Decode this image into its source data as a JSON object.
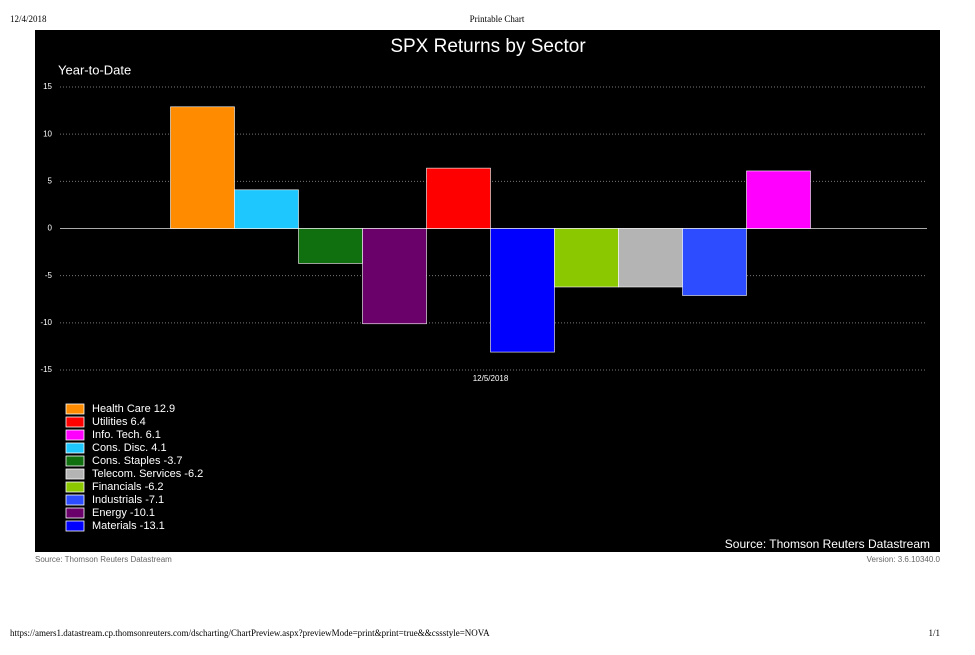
{
  "page": {
    "date": "12/4/2018",
    "heading": "Printable Chart",
    "source_left": "Source: Thomson Reuters Datastream",
    "version": "Version: 3.6.10340.0",
    "url": "https://amers1.datastream.cp.thomsonreuters.com/dscharting/ChartPreview.aspx?previewMode=print&print=true&&cssstyle=NOVA",
    "page_number": "1/1"
  },
  "chart_data": {
    "type": "bar",
    "title": "SPX Returns by Sector",
    "subtitle": "Year-to-Date",
    "source": "Source: Thomson Reuters Datastream",
    "categories": [
      "12/5/2018"
    ],
    "series": [
      {
        "color": "#ff8c00",
        "values": [
          12.9
        ]
      },
      {
        "color": "#1ec8ff",
        "values": [
          4.1
        ]
      },
      {
        "color": "#107010",
        "values": [
          -3.7
        ]
      },
      {
        "color": "#6a006a",
        "values": [
          -10.1
        ]
      },
      {
        "color": "#ff0000",
        "values": [
          6.4
        ]
      },
      {
        "color": "#0000ff",
        "values": [
          -13.1
        ]
      },
      {
        "color": "#8cc800",
        "values": [
          -6.2
        ]
      },
      {
        "color": "#b4b4b4",
        "values": [
          -6.2
        ]
      },
      {
        "color": "#2d4bff",
        "values": [
          -7.1
        ]
      },
      {
        "color": "#ff00ff",
        "values": [
          6.1
        ]
      }
    ],
    "legend": [
      {
        "label": "Health Care 12.9",
        "color": "#ff8c00"
      },
      {
        "label": "Utilities 6.4",
        "color": "#ff0000"
      },
      {
        "label": "Info. Tech. 6.1",
        "color": "#ff00ff"
      },
      {
        "label": "Cons. Disc. 4.1",
        "color": "#1ec8ff"
      },
      {
        "label": "Cons. Staples -3.7",
        "color": "#107010"
      },
      {
        "label": "Telecom. Services -6.2",
        "color": "#b4b4b4"
      },
      {
        "label": "Financials -6.2",
        "color": "#8cc800"
      },
      {
        "label": "Industrials -7.1",
        "color": "#2d4bff"
      },
      {
        "label": "Energy -10.1",
        "color": "#6a006a"
      },
      {
        "label": "Materials -13.1",
        "color": "#0000ff"
      }
    ],
    "ylim": [
      -15,
      15
    ],
    "yticks": [
      15,
      10,
      5,
      0,
      -5,
      -10,
      -15
    ],
    "grid": true
  }
}
